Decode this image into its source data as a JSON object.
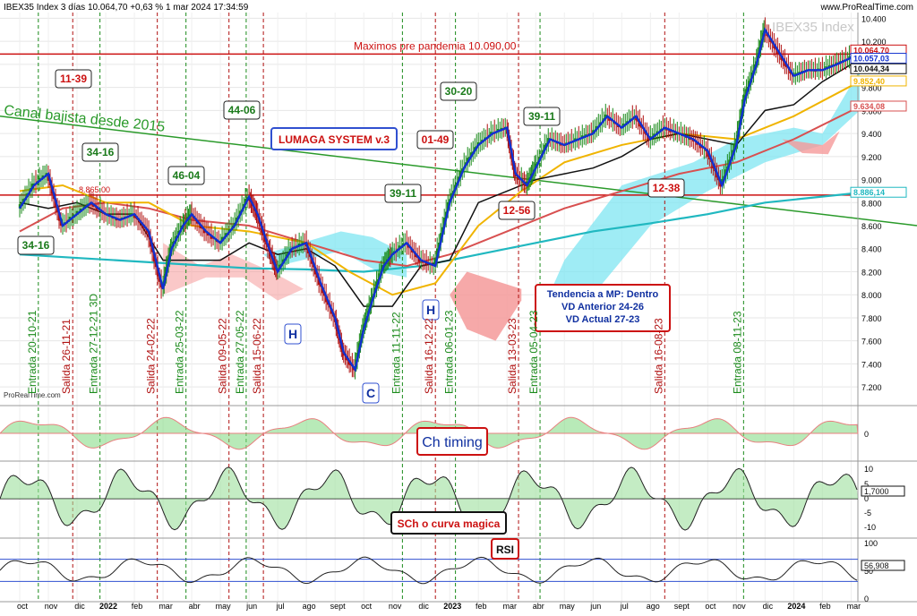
{
  "header": {
    "title": "IBEX35 Index 3 días 10.064,70 +0,63 % 1 mar 2024 17:34:59",
    "source": "www.ProRealTime.com",
    "watermark": "IBEX35 Index",
    "footer_brand": "ProRealTime.com"
  },
  "colors": {
    "candle_up": "#1a8a1a",
    "candle_down": "#b01010",
    "fast_line": "#1030d0",
    "slow_line": "#111111",
    "ma_yellow": "#f0b400",
    "ma_red": "#d85050",
    "ma_cyan": "#20b8c0",
    "trend_green": "#2a9a2a",
    "cloud_cyan": "#7fe6f2",
    "cloud_red": "#f59a9a",
    "resistance": "#cc1111"
  },
  "chart_data": {
    "type": "line",
    "title": "IBEX35 Index 3 días",
    "ylim": [
      7100,
      10450
    ],
    "y_ticks": [
      "10.400",
      "10.200",
      "10.000",
      "9.800",
      "9.600",
      "9.400",
      "9.200",
      "9.000",
      "8.800",
      "8.600",
      "8.400",
      "8.200",
      "8.000",
      "7.800",
      "7.600",
      "7.400",
      "7.200"
    ],
    "y_tick_values": [
      10400,
      10200,
      10000,
      9800,
      9600,
      9400,
      9200,
      9000,
      8800,
      8600,
      8400,
      8200,
      8000,
      7800,
      7600,
      7400,
      7200
    ],
    "x_tick_labels": [
      "oct",
      "nov",
      "dic",
      "2022",
      "feb",
      "mar",
      "abr",
      "may",
      "jun",
      "jul",
      "ago",
      "sept",
      "oct",
      "nov",
      "dic",
      "2023",
      "feb",
      "mar",
      "abr",
      "may",
      "jun",
      "jul",
      "ago",
      "sept",
      "oct",
      "nov",
      "dic",
      "2024",
      "feb",
      "mar"
    ],
    "x_tick_months": [
      0,
      1,
      2,
      3,
      4,
      5,
      6,
      7,
      8,
      9,
      10,
      11,
      12,
      13,
      14,
      15,
      16,
      17,
      18,
      19,
      20,
      21,
      22,
      23,
      24,
      25,
      26,
      27,
      28,
      29
    ],
    "price_series": {
      "name": "IBEX35 Index",
      "month": [
        0,
        0.5,
        1,
        1.5,
        2,
        2.5,
        3,
        3.5,
        4,
        4.5,
        5,
        5.3,
        5.7,
        6,
        6.5,
        7,
        7.5,
        8,
        8.3,
        8.7,
        9,
        9.5,
        10,
        10.5,
        11,
        11.3,
        11.7,
        12,
        12.3,
        12.7,
        13,
        13.5,
        14,
        14.5,
        15,
        15.5,
        16,
        16.5,
        17,
        17.3,
        17.7,
        18,
        18.5,
        19,
        19.5,
        20,
        20.5,
        21,
        21.5,
        22,
        22.5,
        23,
        23.5,
        24,
        24.5,
        25,
        25.3,
        25.7,
        26,
        26.5,
        27,
        27.5,
        28,
        28.5,
        29
      ],
      "value": [
        8750,
        8950,
        9050,
        8600,
        8700,
        8800,
        8700,
        8650,
        8700,
        8550,
        8050,
        8400,
        8600,
        8700,
        8550,
        8450,
        8600,
        8850,
        8700,
        8400,
        8200,
        8400,
        8450,
        8100,
        7800,
        7500,
        7350,
        7700,
        7950,
        8250,
        8350,
        8450,
        8300,
        8250,
        8800,
        9100,
        9300,
        9400,
        9450,
        9050,
        8950,
        9100,
        9350,
        9300,
        9350,
        9400,
        9550,
        9450,
        9550,
        9350,
        9450,
        9400,
        9350,
        9250,
        8950,
        9300,
        9700,
        10000,
        10300,
        10100,
        9900,
        9950,
        9950,
        10000,
        10057
      ]
    },
    "ma_values": {
      "ma_yellow_end": 9852.4,
      "ma_red_end": 9634.08,
      "ma_cyan_end": 8886.14,
      "black_end": 10044.34,
      "blue_end": 10057.03,
      "last_close": 10064.7
    },
    "resistance_levels": [
      {
        "label": "Maximos pre pandemia 10.090,00",
        "value": 10090
      },
      {
        "label": "8.865,00",
        "value": 8865
      }
    ],
    "trend_line": {
      "label": "Canal bajista desde 2015",
      "start": 9550,
      "end": 8600
    },
    "price_axis_labels": [
      "10.064,70",
      "10.057,03",
      "10.044,34",
      "9.852,40",
      "9.634,08",
      "8.886,14"
    ],
    "boxes": [
      "11-39",
      "34-16",
      "44-06",
      "46-04",
      "34-16",
      "30-20",
      "01-49",
      "39-11",
      "39-11",
      "12-56",
      "12-38"
    ],
    "system_label": "LUMAGA SYSTEM v.3",
    "trend_box": [
      "Tendencia a MP: Dentro",
      "VD Anterior 24-26",
      "VD Actual 27-23"
    ],
    "pattern_labels": [
      "H",
      "H",
      "C"
    ],
    "signals": [
      {
        "label": "Entrada 20-10-21",
        "month": 0.65,
        "kind": "entrada"
      },
      {
        "label": "Salida 26-11-21",
        "month": 1.85,
        "kind": "salida"
      },
      {
        "label": "Entrada 27-12-21 3D",
        "month": 2.8,
        "kind": "entrada"
      },
      {
        "label": "Salida 24-02-22",
        "month": 4.8,
        "kind": "salida"
      },
      {
        "label": "Entrada 25-03-22",
        "month": 5.8,
        "kind": "entrada"
      },
      {
        "label": "Salida 09-05-22",
        "month": 7.3,
        "kind": "salida"
      },
      {
        "label": "Entrada 27-05-22",
        "month": 7.9,
        "kind": "entrada"
      },
      {
        "label": "Salida 15-06-22",
        "month": 8.5,
        "kind": "salida"
      },
      {
        "label": "Entrada 11-11-22",
        "month": 13.35,
        "kind": "entrada"
      },
      {
        "label": "Salida 16-12-22",
        "month": 14.5,
        "kind": "salida"
      },
      {
        "label": "Entrada 06-01-23",
        "month": 15.2,
        "kind": "entrada"
      },
      {
        "label": "Salida 13-03-23",
        "month": 17.4,
        "kind": "salida"
      },
      {
        "label": "Entrada 05-04-23",
        "month": 18.15,
        "kind": "entrada"
      },
      {
        "label": "Salida 16-08-23",
        "month": 22.5,
        "kind": "salida"
      },
      {
        "label": "Entrada 08-11-23",
        "month": 25.25,
        "kind": "entrada"
      }
    ]
  },
  "indicators": {
    "timing": {
      "label": "Ch timing",
      "axis": [
        "0"
      ]
    },
    "sch": {
      "label": "SCh o curva magica",
      "axis": [
        "10",
        "5",
        "0",
        "-5",
        "-10"
      ],
      "value": "1,7000"
    },
    "rsi": {
      "label": "RSI",
      "axis": [
        "100",
        "50",
        "0"
      ],
      "value": "56,908"
    }
  }
}
